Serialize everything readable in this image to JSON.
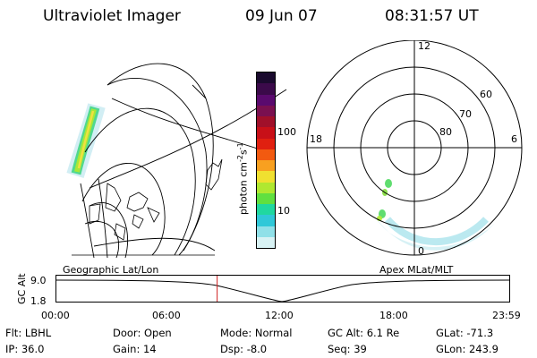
{
  "header": {
    "instrument": "Ultraviolet Imager",
    "date": "09 Jun 07",
    "time": "08:31:57 UT"
  },
  "colorbar": {
    "label": "photon cm",
    "label_sup1": "-2",
    "label_mid": "s",
    "label_sup2": "-1",
    "ticks": [
      "100",
      "10"
    ],
    "colors": [
      "#1a0a2e",
      "#3b0a4a",
      "#5a0a6e",
      "#7a1050",
      "#a0102a",
      "#c81018",
      "#e02010",
      "#f25a10",
      "#f8a020",
      "#f0e030",
      "#b0e830",
      "#60e040",
      "#20d8a0",
      "#30c8d8",
      "#90e0e8",
      "#d8f2f4"
    ]
  },
  "left_panel": {
    "caption": "Geographic Lat/Lon"
  },
  "right_panel": {
    "caption": "Apex MLat/MLT",
    "lat_labels": [
      "60",
      "70",
      "80"
    ],
    "mlt_labels": [
      "12",
      "18",
      "6",
      "0"
    ]
  },
  "orbit_plot": {
    "ylabel": "GC Alt",
    "y_ticks": [
      "9.0",
      "1.8"
    ],
    "x_ticks": [
      "00:00",
      "06:00",
      "12:00",
      "18:00",
      "23:59"
    ],
    "current_time_fraction": 0.355
  },
  "info": {
    "row1": [
      {
        "label": "Flt:",
        "value": "LBHL"
      },
      {
        "label": "Door:",
        "value": "Open"
      },
      {
        "label": "Mode:",
        "value": "Normal"
      },
      {
        "label": "GC Alt:",
        "value": "6.1 Re"
      },
      {
        "label": "GLat:",
        "value": "-71.3"
      }
    ],
    "row2": [
      {
        "label": "IP:",
        "value": "36.0"
      },
      {
        "label": "Gain:",
        "value": "14"
      },
      {
        "label": "Dsp:",
        "value": "-8.0"
      },
      {
        "label": "Seq:",
        "value": "39"
      },
      {
        "label": "GLon:",
        "value": "243.9"
      }
    ]
  }
}
